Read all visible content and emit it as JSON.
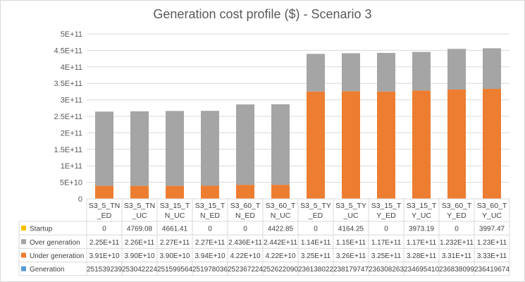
{
  "chart_data": {
    "type": "bar",
    "stacked": true,
    "title": "Generation cost profile ($) - Scenario 3",
    "categories": [
      [
        "S3_5_TN",
        "_ED"
      ],
      [
        "S3_5_TN",
        "_UC"
      ],
      [
        "S3_15_T",
        "N_UC"
      ],
      [
        "S3_15_T",
        "N_ED"
      ],
      [
        "S3_60_T",
        "N_ED"
      ],
      [
        "S3_60_T",
        "N_UC"
      ],
      [
        "S3_5_TY",
        "_ED"
      ],
      [
        "S3_5_TY",
        "_UC"
      ],
      [
        "S3_15_T",
        "Y_ED"
      ],
      [
        "S3_15_T",
        "Y_UC"
      ],
      [
        "S3_60_T",
        "Y_ED"
      ],
      [
        "S3_60_T",
        "Y_UC"
      ]
    ],
    "y_ticks": [
      "0",
      "5E+10",
      "1E+11",
      "1.5E+11",
      "2E+11",
      "2.5E+11",
      "3E+11",
      "3.5E+11",
      "4E+11",
      "4.5E+11",
      "5E+11"
    ],
    "ylim": [
      0,
      500000000000
    ],
    "series": [
      {
        "name": "Startup",
        "color": "#FFC000",
        "labels": [
          "0",
          "4769.08",
          "4661.41",
          "0",
          "0",
          "4422.85",
          "0",
          "4164.25",
          "0",
          "3973.19",
          "0",
          "3997.47"
        ],
        "values": [
          0,
          4769.08,
          4661.41,
          0,
          0,
          4422.85,
          0,
          4164.25,
          0,
          3973.19,
          0,
          3997.47
        ]
      },
      {
        "name": "Over generation",
        "color": "#A5A5A5",
        "labels": [
          "2.25E+11",
          "2.26E+11",
          "2.27E+11",
          "2.27E+11",
          "2.436E+11",
          "2.442E+11",
          "1.14E+11",
          "1.15E+11",
          "1.17E+11",
          "1.17E+11",
          "1.232E+11",
          "1.23E+11"
        ],
        "values": [
          225000000000,
          226000000000,
          227000000000,
          227000000000,
          243600000000,
          244200000000,
          114000000000,
          115000000000,
          117000000000,
          117000000000,
          123200000000,
          123000000000
        ]
      },
      {
        "name": "Under generation",
        "color": "#ED7D31",
        "labels": [
          "3.91E+10",
          "3.90E+10",
          "3.90E+10",
          "3.94E+10",
          "4.22E+10",
          "4.22E+10",
          "3.25E+11",
          "3.26E+11",
          "3.25E+11",
          "3.28E+11",
          "3.31E+11",
          "3.33E+11"
        ],
        "values": [
          39100000000,
          39000000000,
          39000000000,
          39400000000,
          42200000000,
          42200000000,
          325000000000,
          326000000000,
          325000000000,
          328000000000,
          331000000000,
          333000000000
        ]
      },
      {
        "name": "Generation",
        "color": "#5B9BD5",
        "labels": [
          "251539239",
          "253042224",
          "251599564",
          "251978036",
          "252367224",
          "252622090",
          "236138022",
          "238179747",
          "236308263",
          "234695410",
          "236838099",
          "236419674"
        ],
        "values": [
          251539239,
          253042224,
          251599564,
          251978036,
          252367224,
          252622090,
          236138022,
          238179747,
          236308263,
          234695410,
          236838099,
          236419674
        ]
      }
    ],
    "legend": "data table",
    "grid": true
  }
}
